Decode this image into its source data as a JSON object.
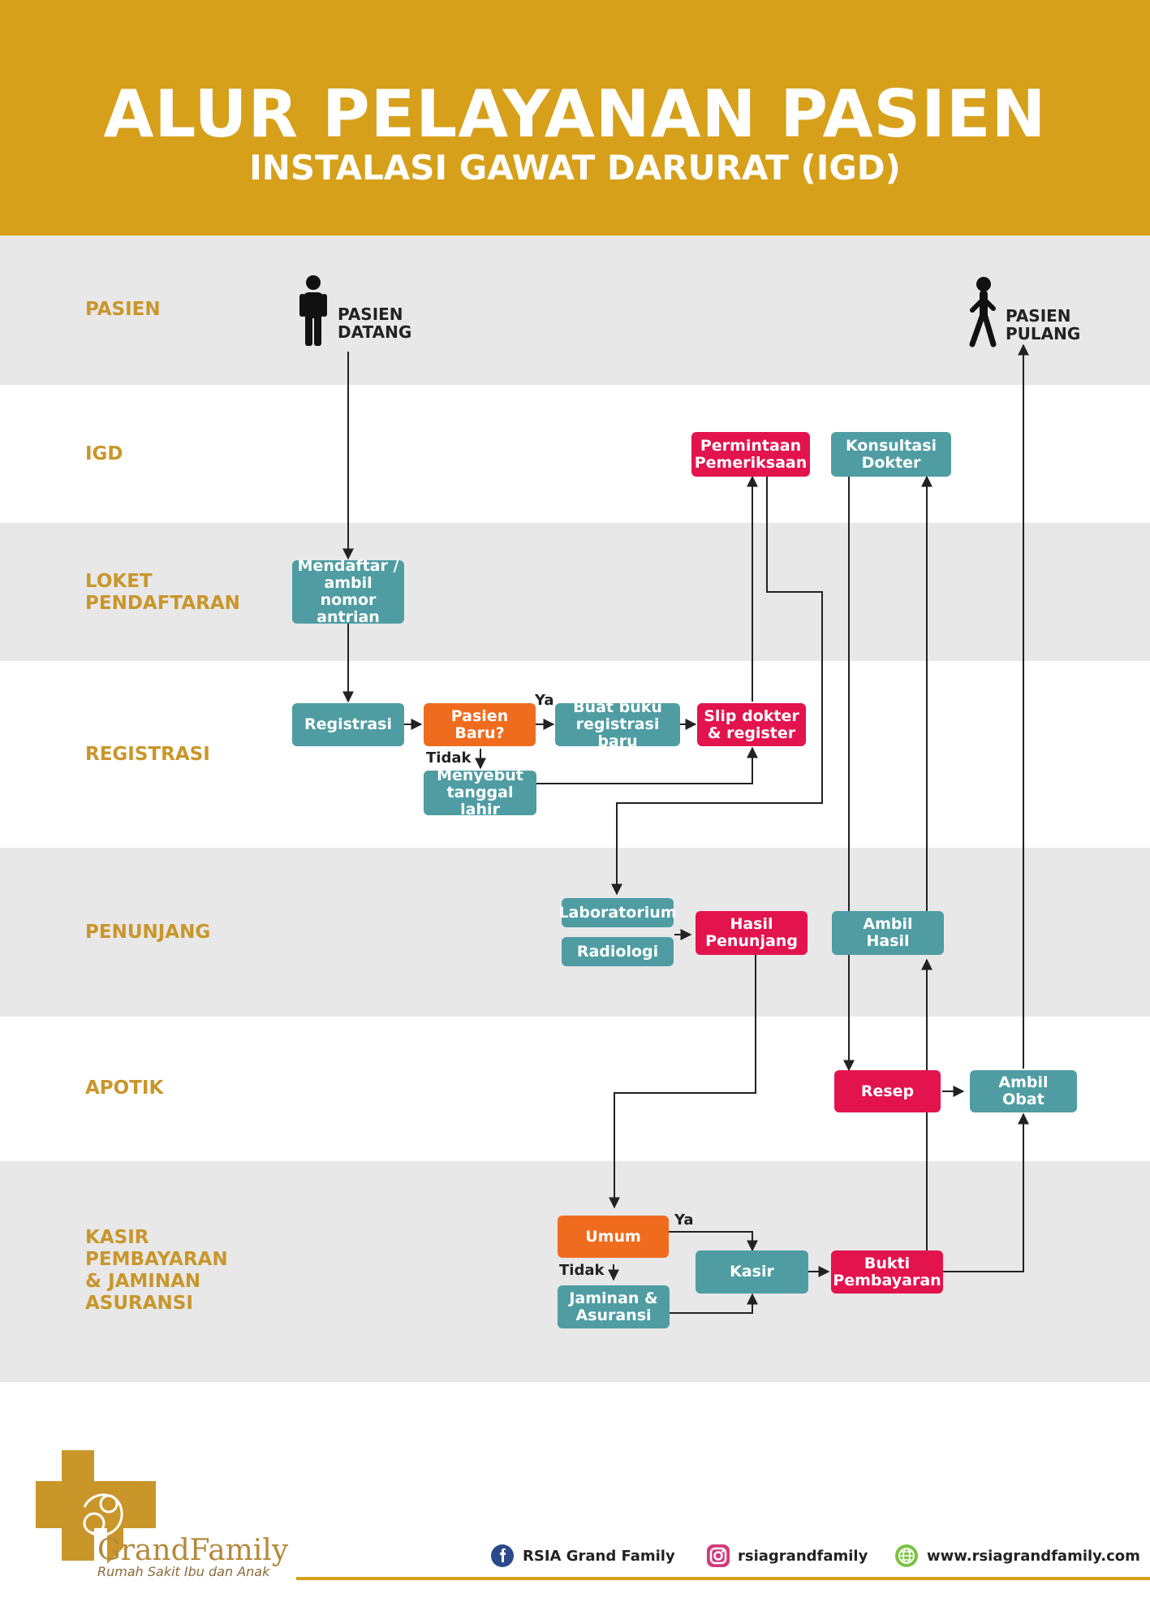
{
  "header": {
    "title": "ALUR PELAYANAN PASIEN",
    "subtitle": "INSTALASI GAWAT DARURAT (IGD)"
  },
  "colors": {
    "header": "#d6a01a",
    "lane_label": "#c9962a",
    "band_gray": "#e8e8e8",
    "teal": "#4f9da3",
    "red": "#e3134e",
    "orange": "#ef6c1f"
  },
  "lanes": [
    {
      "label": "PASIEN"
    },
    {
      "label": "IGD"
    },
    {
      "label": "LOKET\nPENDAFTARAN"
    },
    {
      "label": "REGISTRASI"
    },
    {
      "label": "PENUNJANG"
    },
    {
      "label": "APOTIK"
    },
    {
      "label": "KASIR\nPEMBAYARAN\n& JAMINAN\nASURANSI"
    }
  ],
  "persons": {
    "arrive": {
      "label": "PASIEN\nDATANG",
      "icon": "standing-person-icon"
    },
    "leave": {
      "label": "PASIEN\nPULANG",
      "icon": "walking-person-icon"
    }
  },
  "boxes": {
    "permintaan": "Permintaan\nPemeriksaan",
    "konsultasi": "Konsultasi\nDokter",
    "mendaftar": "Mendaftar /\nambil nomor\nantrian",
    "registrasi": "Registrasi",
    "pasien_baru": "Pasien Baru?",
    "buat_buku": "Buat buku\nregistrasi baru",
    "slip": "Slip dokter\n& register",
    "menyebut": "Menyebut\ntanggal lahir",
    "laboratorium": "Laboratorium",
    "radiologi": "Radiologi",
    "hasil_penunjang": "Hasil\nPenunjang",
    "ambil_hasil": "Ambil\nHasil",
    "resep": "Resep",
    "ambil_obat": "Ambil\nObat",
    "umum": "Umum",
    "kasir": "Kasir",
    "bukti": "Bukti\nPembayaran",
    "jaminan": "Jaminan &\nAsuransi"
  },
  "tags": {
    "ya_registrasi": "Ya",
    "tidak_registrasi": "Tidak",
    "ya_kasir": "Ya",
    "tidak_kasir": "Tidak"
  },
  "footer": {
    "brand": "GrandFamily",
    "tagline": "Rumah Sakit Ibu dan Anak",
    "facebook": "RSIA Grand Family",
    "instagram": "rsiagrandfamily",
    "website": "www.rsiagrandfamily.com"
  }
}
